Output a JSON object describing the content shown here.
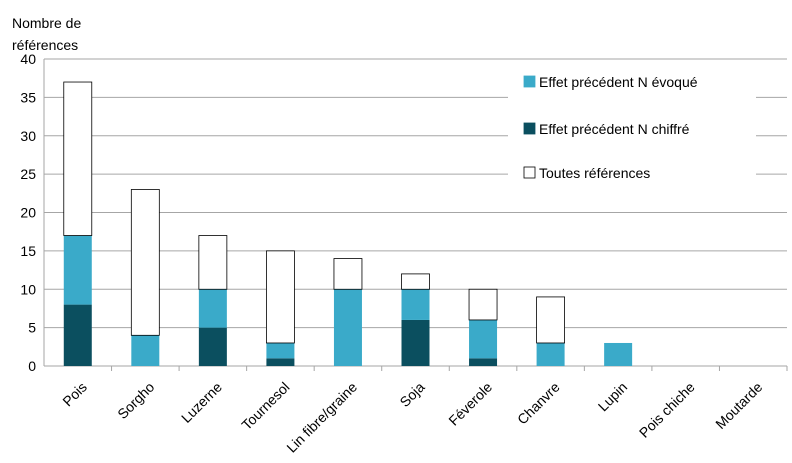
{
  "chart_data": {
    "type": "bar",
    "stacked": true,
    "ylabel_lines": [
      "Nombre de",
      "références"
    ],
    "xlabel": "",
    "ylim": [
      0,
      40
    ],
    "yticks": [
      0,
      5,
      10,
      15,
      20,
      25,
      30,
      35,
      40
    ],
    "grid": true,
    "legend_position": "top-right",
    "categories": [
      "Pois",
      "Sorgho",
      "Luzerne",
      "Tournesol",
      "Lin fibre/graine",
      "Soja",
      "Féverole",
      "Chanvre",
      "Lupin",
      "Pois chiche",
      "Moutarde"
    ],
    "series": [
      {
        "name": "Effet précédent N chiffré",
        "color": "#0b4f5f",
        "values": [
          8,
          0,
          5,
          1,
          0,
          6,
          1,
          0,
          0,
          0,
          0
        ]
      },
      {
        "name": "Effet précédent N évoqué",
        "color": "#3aaac9",
        "values": [
          9,
          4,
          5,
          2,
          10,
          4,
          5,
          3,
          3,
          0,
          0
        ]
      },
      {
        "name": "Toutes références",
        "color": "#ffffff",
        "values": [
          20,
          19,
          7,
          12,
          4,
          2,
          4,
          6,
          0,
          0,
          0
        ]
      }
    ],
    "legend_order": [
      "Effet précédent N évoqué",
      "Effet précédent N chiffré",
      "Toutes références"
    ]
  }
}
